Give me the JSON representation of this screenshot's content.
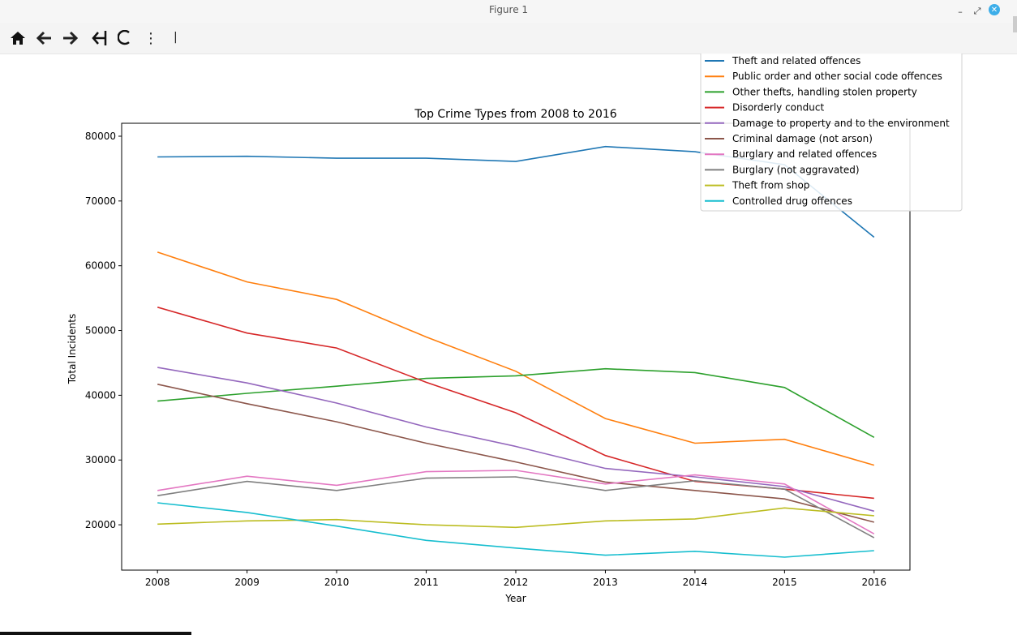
{
  "window": {
    "title": "Figure 1"
  },
  "toolbar": {
    "items": [
      {
        "name": "home-icon",
        "glyph": "⌂"
      },
      {
        "name": "back-icon",
        "glyph": "←"
      },
      {
        "name": "forward-icon",
        "glyph": "→"
      },
      {
        "name": "pan-icon",
        "glyph": "✥"
      },
      {
        "name": "zoom-icon",
        "glyph": "☾"
      },
      {
        "name": "more-icon",
        "glyph": "⋮"
      }
    ],
    "coords": "|"
  },
  "chart_data": {
    "type": "line",
    "title": "Top Crime Types from 2008 to 2016",
    "xlabel": "Year",
    "ylabel": "Total Incidents",
    "x": [
      2008,
      2009,
      2010,
      2011,
      2012,
      2013,
      2014,
      2015,
      2016
    ],
    "ylim": [
      13000,
      82000
    ],
    "yticks": [
      20000,
      30000,
      40000,
      50000,
      60000,
      70000,
      80000
    ],
    "legend_position": "top-right",
    "grid": false,
    "series": [
      {
        "name": "Theft and related offences",
        "color": "#1f77b4",
        "values": [
          76800,
          76900,
          76600,
          76600,
          76100,
          78400,
          77600,
          75600,
          64400
        ]
      },
      {
        "name": "Public order and other social code offences",
        "color": "#ff7f0e",
        "values": [
          62100,
          57500,
          54800,
          49000,
          43700,
          36400,
          32600,
          33200,
          29200
        ]
      },
      {
        "name": "Other thefts, handling stolen property",
        "color": "#2ca02c",
        "values": [
          39100,
          40300,
          41400,
          42600,
          43000,
          44100,
          43500,
          41200,
          33500
        ]
      },
      {
        "name": "Disorderly conduct",
        "color": "#d62728",
        "values": [
          53600,
          49600,
          47300,
          42000,
          37300,
          30700,
          26700,
          25500,
          24100
        ]
      },
      {
        "name": "Damage to property and to the environment",
        "color": "#9467bd",
        "values": [
          44300,
          41900,
          38800,
          35100,
          32100,
          28700,
          27400,
          25900,
          22100
        ]
      },
      {
        "name": "Criminal damage (not arson)",
        "color": "#8c564b",
        "values": [
          41700,
          38700,
          35900,
          32600,
          29700,
          26600,
          25300,
          24000,
          20400
        ]
      },
      {
        "name": "Burglary and related offences",
        "color": "#e377c2",
        "values": [
          25300,
          27500,
          26100,
          28200,
          28400,
          26300,
          27700,
          26300,
          18600
        ]
      },
      {
        "name": "Burglary (not aggravated)",
        "color": "#7f7f7f",
        "values": [
          24500,
          26700,
          25300,
          27200,
          27400,
          25300,
          26800,
          25500,
          18000
        ]
      },
      {
        "name": "Theft from shop",
        "color": "#bcbd22",
        "values": [
          20100,
          20600,
          20800,
          20000,
          19600,
          20600,
          20900,
          22600,
          21400
        ]
      },
      {
        "name": "Controlled drug offences",
        "color": "#17becf",
        "values": [
          23400,
          21900,
          19800,
          17600,
          16400,
          15300,
          15900,
          15000,
          16000
        ]
      }
    ]
  }
}
